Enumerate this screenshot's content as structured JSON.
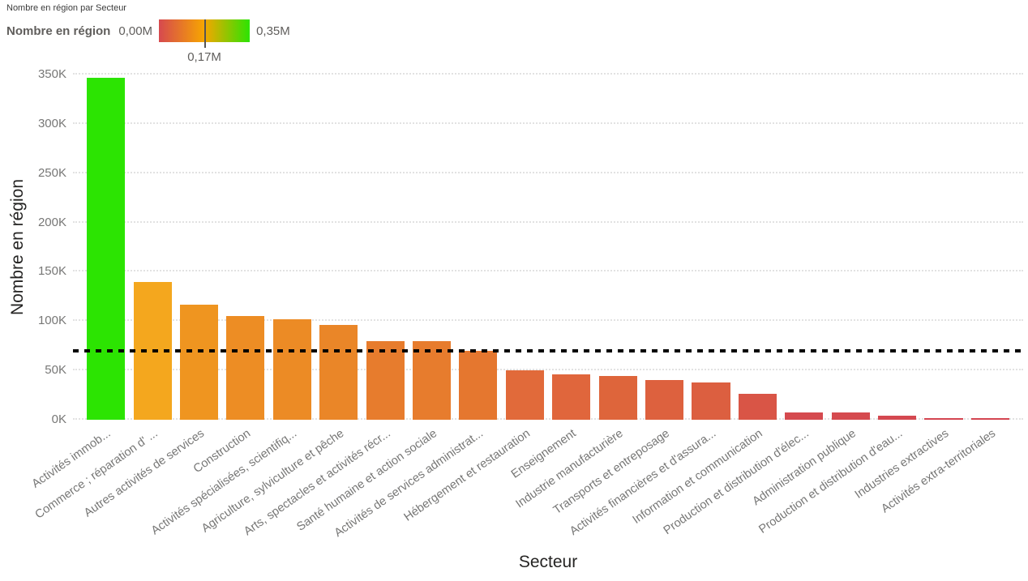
{
  "header": {
    "title": "Nombre en région par Secteur"
  },
  "legend": {
    "label": "Nombre en région",
    "min_label": "0,00M",
    "mid_label": "0,17M",
    "max_label": "0,35M",
    "gradient_colors": [
      "#d6494f",
      "#f7a600",
      "#2ce402"
    ]
  },
  "chart_data": {
    "type": "bar",
    "title": "Nombre en région par Secteur",
    "xlabel": "Secteur",
    "ylabel": "Nombre en région",
    "ylim": [
      0,
      350000
    ],
    "grid": "horizontal-dotted",
    "legend_position": "top-left",
    "y_ticks": [
      "0K",
      "50K",
      "100K",
      "150K",
      "200K",
      "250K",
      "300K",
      "350K"
    ],
    "y_tick_values": [
      0,
      50000,
      100000,
      150000,
      200000,
      250000,
      300000,
      350000
    ],
    "constant_line": {
      "value": 70000,
      "style": "black-dashed"
    },
    "categories": [
      "Activités immob...",
      "Commerce ; réparation d' ...",
      "Autres activités de services",
      "Construction",
      "Activités spécialisées, scientifiq...",
      "Agriculture, sylviculture et pêche",
      "Arts, spectacles et activités récr...",
      "Santé humaine et action sociale",
      "Activités de services administrat...",
      "Hébergement et restauration",
      "Enseignement",
      "Industrie manufacturière",
      "Transports et entreposage",
      "Activités financières et d'assura...",
      "Information et communication",
      "Production et distribution d'élec...",
      "Administration publique",
      "Production et distribution d'eau...",
      "Industries extractives",
      "Activités extra-territoriales"
    ],
    "values": [
      347000,
      140000,
      117000,
      105000,
      102000,
      96000,
      80000,
      80000,
      70000,
      50000,
      46000,
      44000,
      40000,
      38000,
      26000,
      7000,
      7000,
      4000,
      1500,
      1500
    ],
    "bar_colors": [
      "#2ce402",
      "#f4a71e",
      "#ef9520",
      "#ed8d24",
      "#ec8b25",
      "#ea8628",
      "#e77c2d",
      "#e77c2d",
      "#e5772f",
      "#e16a3a",
      "#e0663c",
      "#de653b",
      "#dd613e",
      "#dc5f40",
      "#d95546",
      "#d54a4f",
      "#d54a4f",
      "#d44850",
      "#d44651",
      "#d44651"
    ]
  }
}
